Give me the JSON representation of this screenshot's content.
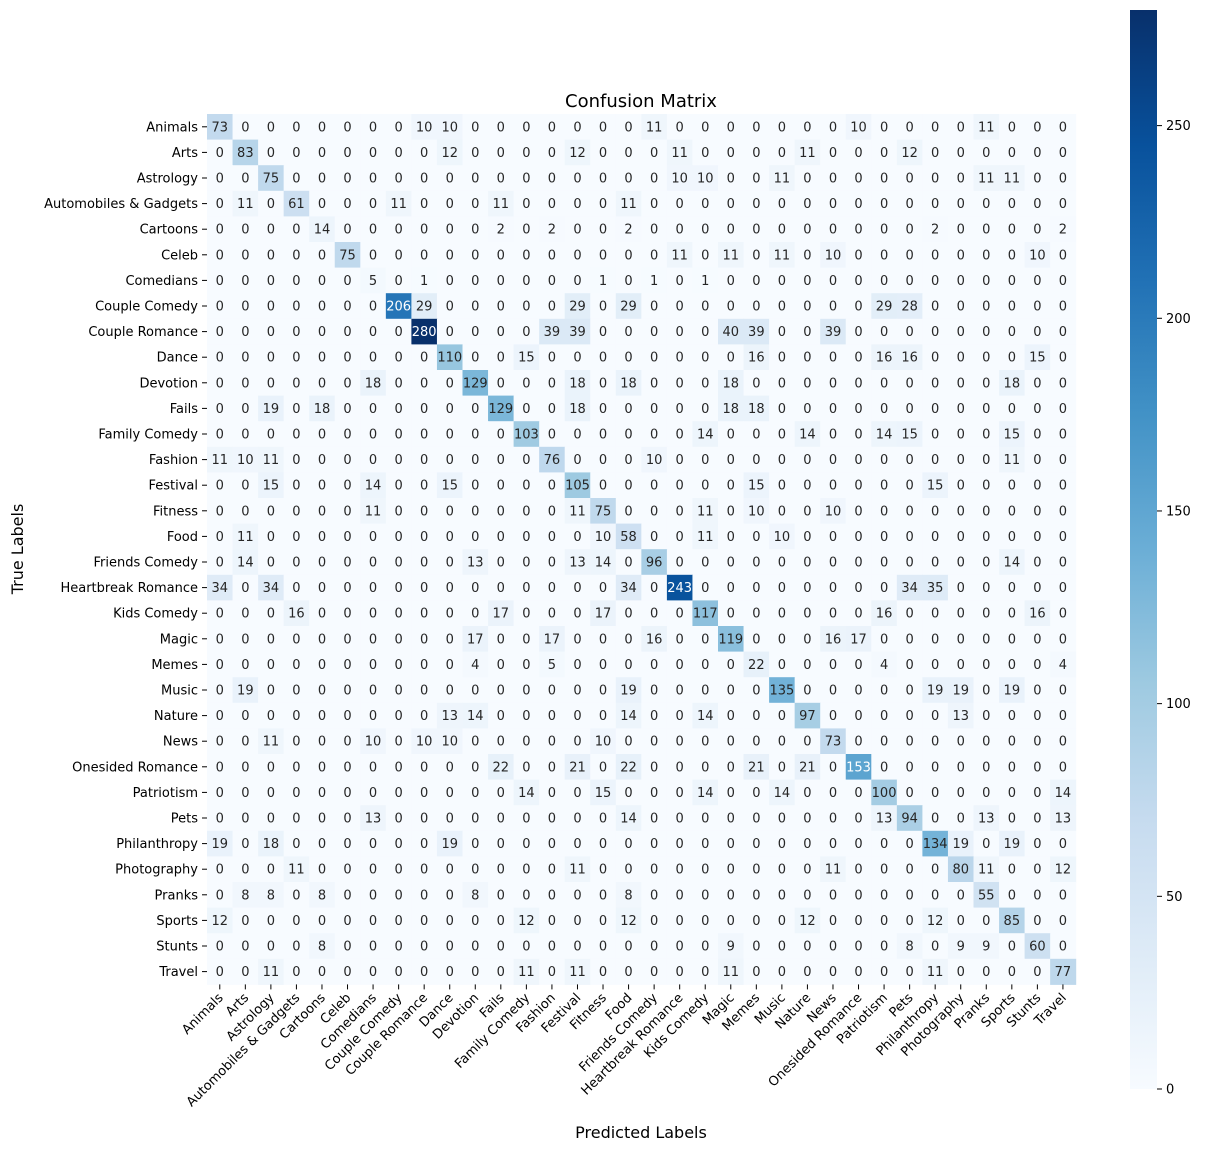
{
  "chart_data": {
    "type": "heatmap",
    "title": "Confusion Matrix",
    "xlabel": "Predicted Labels",
    "ylabel": "True Labels",
    "labels": [
      "Animals",
      "Arts",
      "Astrology",
      "Automobiles & Gadgets",
      "Cartoons",
      "Celeb",
      "Comedians",
      "Couple Comedy",
      "Couple Romance",
      "Dance",
      "Devotion",
      "Fails",
      "Family Comedy",
      "Fashion",
      "Festival",
      "Fitness",
      "Food",
      "Friends Comedy",
      "Heartbreak Romance",
      "Kids Comedy",
      "Magic",
      "Memes",
      "Music",
      "Nature",
      "News",
      "Onesided Romance",
      "Patriotism",
      "Pets",
      "Philanthropy",
      "Photography",
      "Pranks",
      "Sports",
      "Stunts",
      "Travel"
    ],
    "matrix": [
      [
        73,
        0,
        0,
        0,
        0,
        0,
        0,
        0,
        10,
        10,
        0,
        0,
        0,
        0,
        0,
        0,
        0,
        11,
        0,
        0,
        0,
        0,
        0,
        0,
        0,
        10,
        0,
        0,
        0,
        0,
        11,
        0,
        0,
        0
      ],
      [
        0,
        83,
        0,
        0,
        0,
        0,
        0,
        0,
        0,
        12,
        0,
        0,
        0,
        0,
        12,
        0,
        0,
        0,
        11,
        0,
        0,
        0,
        0,
        11,
        0,
        0,
        0,
        12,
        0,
        0,
        0,
        0,
        0,
        0
      ],
      [
        0,
        0,
        75,
        0,
        0,
        0,
        0,
        0,
        0,
        0,
        0,
        0,
        0,
        0,
        0,
        0,
        0,
        0,
        10,
        10,
        0,
        0,
        11,
        0,
        0,
        0,
        0,
        0,
        0,
        0,
        11,
        11,
        0,
        0
      ],
      [
        0,
        11,
        0,
        61,
        0,
        0,
        0,
        11,
        0,
        0,
        0,
        11,
        0,
        0,
        0,
        0,
        11,
        0,
        0,
        0,
        0,
        0,
        0,
        0,
        0,
        0,
        0,
        0,
        0,
        0,
        0,
        0,
        0,
        0
      ],
      [
        0,
        0,
        0,
        0,
        14,
        0,
        0,
        0,
        0,
        0,
        0,
        2,
        0,
        2,
        0,
        0,
        2,
        0,
        0,
        0,
        0,
        0,
        0,
        0,
        0,
        0,
        0,
        0,
        2,
        0,
        0,
        0,
        0,
        2
      ],
      [
        0,
        0,
        0,
        0,
        0,
        75,
        0,
        0,
        0,
        0,
        0,
        0,
        0,
        0,
        0,
        0,
        0,
        0,
        11,
        0,
        11,
        0,
        11,
        0,
        10,
        0,
        0,
        0,
        0,
        0,
        0,
        0,
        10,
        0
      ],
      [
        0,
        0,
        0,
        0,
        0,
        0,
        5,
        0,
        1,
        0,
        0,
        0,
        0,
        0,
        0,
        1,
        0,
        1,
        0,
        1,
        0,
        0,
        0,
        0,
        0,
        0,
        0,
        0,
        0,
        0,
        0,
        0,
        0,
        0
      ],
      [
        0,
        0,
        0,
        0,
        0,
        0,
        0,
        206,
        29,
        0,
        0,
        0,
        0,
        0,
        29,
        0,
        29,
        0,
        0,
        0,
        0,
        0,
        0,
        0,
        0,
        0,
        29,
        28,
        0,
        0,
        0,
        0,
        0,
        0
      ],
      [
        0,
        0,
        0,
        0,
        0,
        0,
        0,
        0,
        280,
        0,
        0,
        0,
        0,
        39,
        39,
        0,
        0,
        0,
        0,
        0,
        40,
        39,
        0,
        0,
        39,
        0,
        0,
        0,
        0,
        0,
        0,
        0,
        0,
        0
      ],
      [
        0,
        0,
        0,
        0,
        0,
        0,
        0,
        0,
        0,
        110,
        0,
        0,
        15,
        0,
        0,
        0,
        0,
        0,
        0,
        0,
        0,
        16,
        0,
        0,
        0,
        0,
        16,
        16,
        0,
        0,
        0,
        0,
        15,
        0
      ],
      [
        0,
        0,
        0,
        0,
        0,
        0,
        18,
        0,
        0,
        0,
        129,
        0,
        0,
        0,
        18,
        0,
        18,
        0,
        0,
        0,
        18,
        0,
        0,
        0,
        0,
        0,
        0,
        0,
        0,
        0,
        0,
        18,
        0,
        0
      ],
      [
        0,
        0,
        19,
        0,
        18,
        0,
        0,
        0,
        0,
        0,
        0,
        129,
        0,
        0,
        18,
        0,
        0,
        0,
        0,
        0,
        18,
        18,
        0,
        0,
        0,
        0,
        0,
        0,
        0,
        0,
        0,
        0,
        0,
        0
      ],
      [
        0,
        0,
        0,
        0,
        0,
        0,
        0,
        0,
        0,
        0,
        0,
        0,
        103,
        0,
        0,
        0,
        0,
        0,
        0,
        14,
        0,
        0,
        0,
        14,
        0,
        0,
        14,
        15,
        0,
        0,
        0,
        15,
        0,
        0
      ],
      [
        11,
        10,
        11,
        0,
        0,
        0,
        0,
        0,
        0,
        0,
        0,
        0,
        0,
        76,
        0,
        0,
        0,
        10,
        0,
        0,
        0,
        0,
        0,
        0,
        0,
        0,
        0,
        0,
        0,
        0,
        0,
        11,
        0,
        0
      ],
      [
        0,
        0,
        15,
        0,
        0,
        0,
        14,
        0,
        0,
        15,
        0,
        0,
        0,
        0,
        105,
        0,
        0,
        0,
        0,
        0,
        0,
        15,
        0,
        0,
        0,
        0,
        0,
        0,
        15,
        0,
        0,
        0,
        0,
        0
      ],
      [
        0,
        0,
        0,
        0,
        0,
        0,
        11,
        0,
        0,
        0,
        0,
        0,
        0,
        0,
        11,
        75,
        0,
        0,
        0,
        11,
        0,
        10,
        0,
        0,
        10,
        0,
        0,
        0,
        0,
        0,
        0,
        0,
        0,
        0
      ],
      [
        0,
        11,
        0,
        0,
        0,
        0,
        0,
        0,
        0,
        0,
        0,
        0,
        0,
        0,
        0,
        10,
        58,
        0,
        0,
        11,
        0,
        0,
        10,
        0,
        0,
        0,
        0,
        0,
        0,
        0,
        0,
        0,
        0,
        0
      ],
      [
        0,
        14,
        0,
        0,
        0,
        0,
        0,
        0,
        0,
        0,
        13,
        0,
        0,
        0,
        13,
        14,
        0,
        96,
        0,
        0,
        0,
        0,
        0,
        0,
        0,
        0,
        0,
        0,
        0,
        0,
        0,
        14,
        0,
        0
      ],
      [
        34,
        0,
        34,
        0,
        0,
        0,
        0,
        0,
        0,
        0,
        0,
        0,
        0,
        0,
        0,
        0,
        34,
        0,
        243,
        0,
        0,
        0,
        0,
        0,
        0,
        0,
        0,
        34,
        35,
        0,
        0,
        0,
        0,
        0
      ],
      [
        0,
        0,
        0,
        16,
        0,
        0,
        0,
        0,
        0,
        0,
        0,
        17,
        0,
        0,
        0,
        17,
        0,
        0,
        0,
        117,
        0,
        0,
        0,
        0,
        0,
        0,
        16,
        0,
        0,
        0,
        0,
        0,
        16,
        0
      ],
      [
        0,
        0,
        0,
        0,
        0,
        0,
        0,
        0,
        0,
        0,
        17,
        0,
        0,
        17,
        0,
        0,
        0,
        16,
        0,
        0,
        119,
        0,
        0,
        0,
        16,
        17,
        0,
        0,
        0,
        0,
        0,
        0,
        0,
        0
      ],
      [
        0,
        0,
        0,
        0,
        0,
        0,
        0,
        0,
        0,
        0,
        4,
        0,
        0,
        5,
        0,
        0,
        0,
        0,
        0,
        0,
        0,
        22,
        0,
        0,
        0,
        0,
        4,
        0,
        0,
        0,
        0,
        0,
        0,
        4
      ],
      [
        0,
        19,
        0,
        0,
        0,
        0,
        0,
        0,
        0,
        0,
        0,
        0,
        0,
        0,
        0,
        0,
        19,
        0,
        0,
        0,
        0,
        0,
        135,
        0,
        0,
        0,
        0,
        0,
        19,
        19,
        0,
        19,
        0,
        0
      ],
      [
        0,
        0,
        0,
        0,
        0,
        0,
        0,
        0,
        0,
        13,
        14,
        0,
        0,
        0,
        0,
        0,
        14,
        0,
        0,
        14,
        0,
        0,
        0,
        97,
        0,
        0,
        0,
        0,
        0,
        13,
        0,
        0,
        0,
        0
      ],
      [
        0,
        0,
        11,
        0,
        0,
        0,
        10,
        0,
        10,
        10,
        0,
        0,
        0,
        0,
        0,
        10,
        0,
        0,
        0,
        0,
        0,
        0,
        0,
        0,
        73,
        0,
        0,
        0,
        0,
        0,
        0,
        0,
        0,
        0
      ],
      [
        0,
        0,
        0,
        0,
        0,
        0,
        0,
        0,
        0,
        0,
        0,
        22,
        0,
        0,
        21,
        0,
        22,
        0,
        0,
        0,
        0,
        21,
        0,
        21,
        0,
        153,
        0,
        0,
        0,
        0,
        0,
        0,
        0,
        0
      ],
      [
        0,
        0,
        0,
        0,
        0,
        0,
        0,
        0,
        0,
        0,
        0,
        0,
        14,
        0,
        0,
        15,
        0,
        0,
        0,
        14,
        0,
        0,
        14,
        0,
        0,
        0,
        100,
        0,
        0,
        0,
        0,
        0,
        0,
        14
      ],
      [
        0,
        0,
        0,
        0,
        0,
        0,
        13,
        0,
        0,
        0,
        0,
        0,
        0,
        0,
        0,
        0,
        14,
        0,
        0,
        0,
        0,
        0,
        0,
        0,
        0,
        0,
        13,
        94,
        0,
        0,
        13,
        0,
        0,
        13
      ],
      [
        19,
        0,
        18,
        0,
        0,
        0,
        0,
        0,
        0,
        19,
        0,
        0,
        0,
        0,
        0,
        0,
        0,
        0,
        0,
        0,
        0,
        0,
        0,
        0,
        0,
        0,
        0,
        0,
        134,
        19,
        0,
        19,
        0,
        0
      ],
      [
        0,
        0,
        0,
        11,
        0,
        0,
        0,
        0,
        0,
        0,
        0,
        0,
        0,
        0,
        11,
        0,
        0,
        0,
        0,
        0,
        0,
        0,
        0,
        0,
        11,
        0,
        0,
        0,
        0,
        80,
        11,
        0,
        0,
        12
      ],
      [
        0,
        8,
        8,
        0,
        8,
        0,
        0,
        0,
        0,
        0,
        8,
        0,
        0,
        0,
        0,
        0,
        8,
        0,
        0,
        0,
        0,
        0,
        0,
        0,
        0,
        0,
        0,
        0,
        0,
        0,
        55,
        0,
        0,
        0
      ],
      [
        12,
        0,
        0,
        0,
        0,
        0,
        0,
        0,
        0,
        0,
        0,
        0,
        12,
        0,
        0,
        0,
        12,
        0,
        0,
        0,
        0,
        0,
        0,
        12,
        0,
        0,
        0,
        0,
        12,
        0,
        0,
        85,
        0,
        0
      ],
      [
        0,
        0,
        0,
        0,
        8,
        0,
        0,
        0,
        0,
        0,
        0,
        0,
        0,
        0,
        0,
        0,
        0,
        0,
        0,
        0,
        9,
        0,
        0,
        0,
        0,
        0,
        0,
        8,
        0,
        9,
        9,
        0,
        60,
        0
      ],
      [
        0,
        0,
        11,
        0,
        0,
        0,
        0,
        0,
        0,
        0,
        0,
        0,
        11,
        0,
        11,
        0,
        0,
        0,
        0,
        0,
        11,
        0,
        0,
        0,
        0,
        0,
        0,
        0,
        11,
        0,
        0,
        0,
        0,
        77
      ]
    ],
    "colorbar": {
      "min": 0,
      "max": 280,
      "ticks": [
        0,
        50,
        100,
        150,
        200,
        250
      ],
      "colormap": "Blues"
    },
    "grid": false,
    "legend": "colorbar-right"
  }
}
